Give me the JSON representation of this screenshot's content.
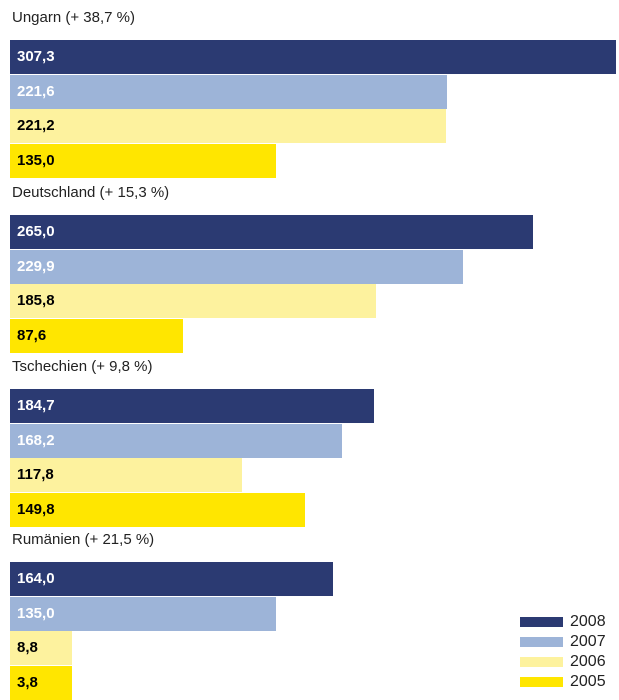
{
  "chart_data": {
    "type": "bar",
    "orientation": "horizontal",
    "categories": [
      "Ungarn (+ 38,7 %)",
      "Deutschland (+ 15,3 %)",
      "Tschechien (+ 9,8 %)",
      "Rumänien (+ 21,5 %)"
    ],
    "series": [
      {
        "name": "2008",
        "color": "#2b3a72",
        "text_color": "#ffffff",
        "values": [
          307.3,
          265.0,
          184.7,
          164.0
        ],
        "labels": [
          "307,3",
          "265,0",
          "184,7",
          "164,0"
        ]
      },
      {
        "name": "2007",
        "color": "#9db4d8",
        "text_color": "#ffffff",
        "values": [
          221.6,
          229.9,
          168.2,
          135.0
        ],
        "labels": [
          "221,6",
          "229,9",
          "168,2",
          "135,0"
        ]
      },
      {
        "name": "2006",
        "color": "#fdf29e",
        "text_color": "#000000",
        "values": [
          221.2,
          185.8,
          117.8,
          8.8
        ],
        "labels": [
          "221,2",
          "185,8",
          "117,8",
          "8,8"
        ]
      },
      {
        "name": "2005",
        "color": "#ffe600",
        "text_color": "#000000",
        "values": [
          135.0,
          87.6,
          149.8,
          3.8
        ],
        "labels": [
          "135,0",
          "87,6",
          "149,8",
          "3,8"
        ]
      }
    ],
    "legend_position": "bottom-right",
    "grid": false,
    "xlim": [
      0,
      307.3
    ]
  }
}
